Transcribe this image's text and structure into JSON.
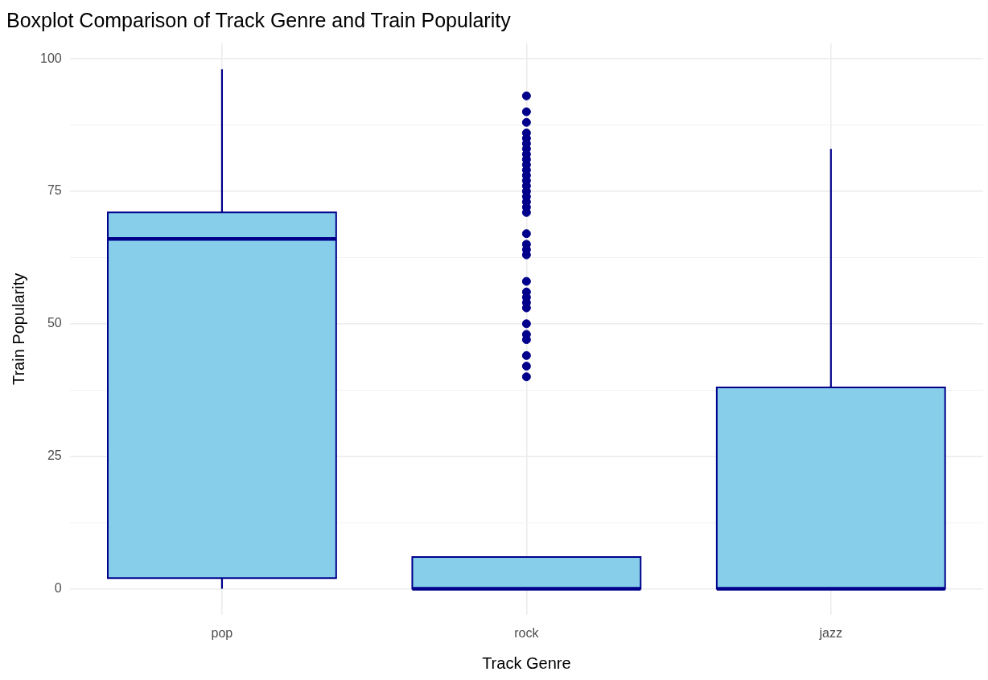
{
  "chart_data": {
    "type": "box",
    "title": "Boxplot Comparison of Track Genre and Train Popularity",
    "xlabel": "Track Genre",
    "ylabel": "Train Popularity",
    "categories": [
      "pop",
      "rock",
      "jazz"
    ],
    "series": [
      {
        "color": "#87ceeb",
        "boxes": [
          {
            "low": 0,
            "q1": 2,
            "median": 66,
            "q3": 71,
            "high": 98
          },
          {
            "low": 0,
            "q1": 0,
            "median": 0,
            "q3": 6,
            "high": 6,
            "outliers": [
              93,
              90,
              88,
              86,
              85,
              84,
              83,
              82,
              81,
              80,
              79,
              78,
              77,
              76,
              75,
              74,
              73,
              72,
              71,
              67,
              65,
              64,
              63,
              58,
              56,
              55,
              54,
              53,
              50,
              48,
              47,
              44,
              42,
              40
            ]
          },
          {
            "low": 0,
            "q1": 0,
            "median": 0,
            "q3": 38,
            "high": 83
          }
        ]
      }
    ],
    "ylim": [
      -4.9,
      102.9
    ],
    "yticks": [
      0,
      {
        "value": 12.5,
        "label": null
      },
      25,
      {
        "value": 37.5,
        "label": null
      },
      50,
      {
        "value": 62.5,
        "label": null
      },
      75,
      {
        "value": 87.5,
        "label": null
      },
      100
    ],
    "grid": true,
    "legend": false
  }
}
